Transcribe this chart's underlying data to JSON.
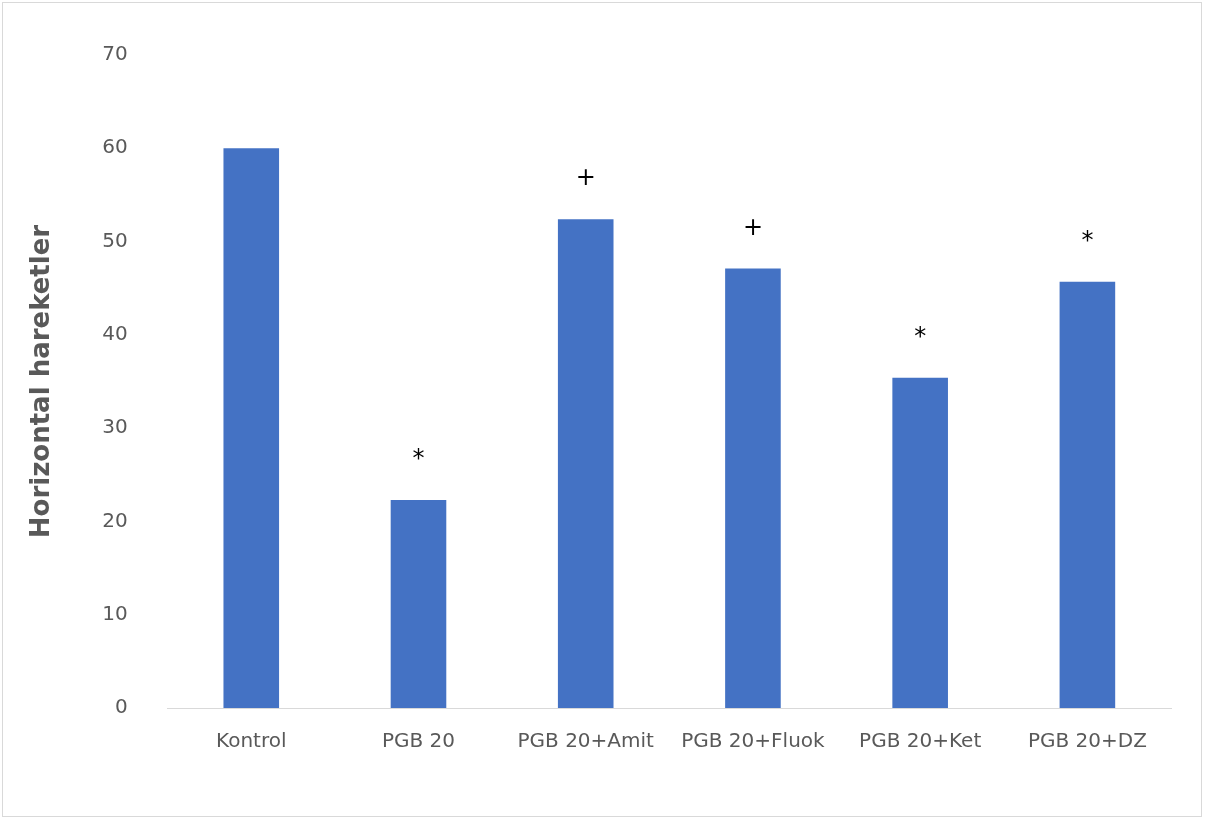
{
  "chart_data": {
    "type": "bar",
    "ylabel": "Horizontal hareketler",
    "categories": [
      "Kontrol",
      "PGB 20",
      "PGB 20+Amit",
      "PGB 20+Fluok",
      "PGB 20+Ket",
      "PGB 20+DZ"
    ],
    "values": [
      60,
      22.3,
      52.4,
      47.1,
      35.4,
      45.7
    ],
    "color": "#4472c4",
    "ylim": [
      0,
      70
    ],
    "yticks": [
      0,
      10,
      20,
      30,
      40,
      50,
      60,
      70
    ],
    "grid": false,
    "legend": false,
    "annotations": [
      {
        "text": "*",
        "x": "PGB 20",
        "y": 22.3
      },
      {
        "text": "+",
        "x": "PGB 20+Amit",
        "y": 52.4
      },
      {
        "text": "+",
        "x": "PGB 20+Fluok",
        "y": 47.1
      },
      {
        "text": "*",
        "x": "PGB 20+Ket",
        "y": 35.4
      },
      {
        "text": "*",
        "x": "PGB 20+DZ",
        "y": 45.7
      }
    ]
  }
}
